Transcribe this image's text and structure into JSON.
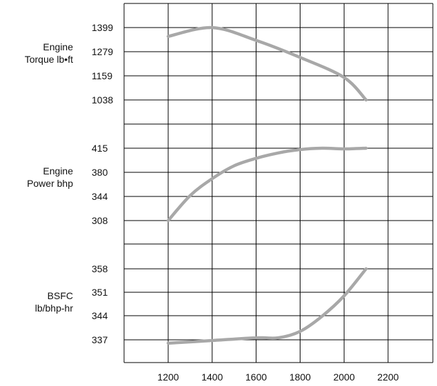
{
  "chart_data": {
    "type": "line",
    "xlim": [
      1000,
      2400
    ],
    "x_ticks": [
      1200,
      1400,
      1600,
      1800,
      2000,
      2200
    ],
    "grid": true,
    "line_color": "#a8a8a8",
    "panels": [
      {
        "ylabel": [
          "Engine",
          "Torque lb•ft"
        ],
        "yticks": [
          1399,
          1279,
          1159,
          1038
        ],
        "ylim": [
          1399,
          1038
        ],
        "series": {
          "x": [
            1200,
            1400,
            1600,
            1800,
            2000,
            2100
          ],
          "y": [
            1355,
            1399,
            1335,
            1250,
            1150,
            1038
          ]
        }
      },
      {
        "ylabel": [
          "Engine",
          "Power bhp"
        ],
        "yticks": [
          415,
          380,
          344,
          308
        ],
        "ylim": [
          415,
          308
        ],
        "series": {
          "x": [
            1200,
            1300,
            1400,
            1500,
            1600,
            1700,
            1800,
            1900,
            2000,
            2100
          ],
          "y": [
            308,
            345,
            370,
            389,
            400,
            408,
            413,
            415,
            414,
            415
          ]
        }
      },
      {
        "ylabel": [
          "BSFC",
          "lb/bhp-hr"
        ],
        "yticks": [
          358,
          351,
          344,
          337
        ],
        "ylim": [
          358,
          337
        ],
        "series": {
          "x": [
            1200,
            1400,
            1600,
            1700,
            1800,
            1900,
            2000,
            2100
          ],
          "y": [
            336,
            336.8,
            337.6,
            337.6,
            339.5,
            344,
            350,
            358
          ]
        }
      }
    ]
  }
}
